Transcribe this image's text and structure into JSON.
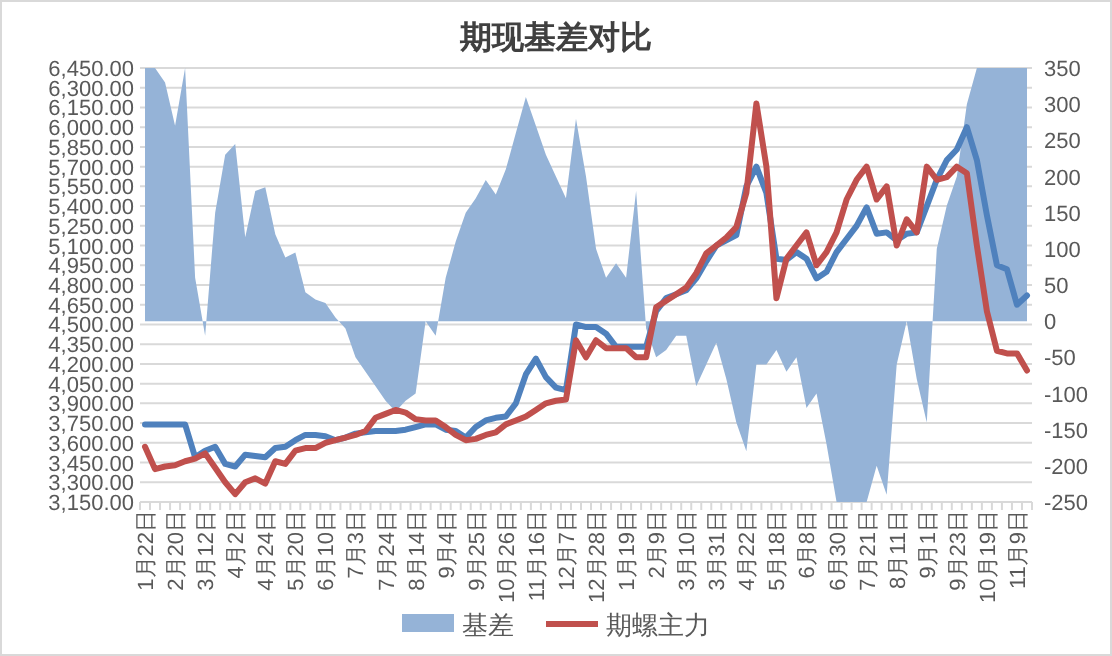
{
  "chart_data": {
    "type": "line",
    "title": "期现基差对比",
    "grid": "y",
    "legend": "bottom",
    "categories": [
      "1月22日",
      null,
      null,
      "2月20日",
      null,
      null,
      "3月12日",
      null,
      null,
      "4月2日",
      null,
      null,
      "4月24日",
      null,
      null,
      "5月20日",
      null,
      null,
      "6月10日",
      null,
      null,
      "7月3日",
      null,
      null,
      "7月24日",
      null,
      null,
      "8月14日",
      null,
      null,
      "9月4日",
      null,
      null,
      "9月25日",
      null,
      null,
      "10月26日",
      null,
      null,
      "11月16日",
      null,
      null,
      "12月7日",
      null,
      null,
      "12月28日",
      null,
      null,
      "1月19日",
      null,
      null,
      "2月9日",
      null,
      null,
      "3月10日",
      null,
      null,
      "3月31日",
      null,
      null,
      "4月22日",
      null,
      null,
      "5月18日",
      null,
      null,
      "6月8日",
      null,
      null,
      "6月30日",
      null,
      null,
      "7月21日",
      null,
      null,
      "8月11日",
      null,
      null,
      "9月1日",
      null,
      null,
      "9月23日",
      null,
      null,
      "10月19日",
      null,
      null,
      "11月9日",
      null
    ],
    "ylim": [
      3150,
      6450
    ],
    "yticks": [
      {
        "value": 3150,
        "label": "3,150.00"
      },
      {
        "value": 3300,
        "label": "3,300.00"
      },
      {
        "value": 3450,
        "label": "3,450.00"
      },
      {
        "value": 3600,
        "label": "3,600.00"
      },
      {
        "value": 3750,
        "label": "3,750.00"
      },
      {
        "value": 3900,
        "label": "3,900.00"
      },
      {
        "value": 4050,
        "label": "4,050.00"
      },
      {
        "value": 4200,
        "label": "4,200.00"
      },
      {
        "value": 4350,
        "label": "4,350.00"
      },
      {
        "value": 4500,
        "label": "4,500.00"
      },
      {
        "value": 4650,
        "label": "4,650.00"
      },
      {
        "value": 4800,
        "label": "4,800.00"
      },
      {
        "value": 4950,
        "label": "4,950.00"
      },
      {
        "value": 5100,
        "label": "5,100.00"
      },
      {
        "value": 5250,
        "label": "5,250.00"
      },
      {
        "value": 5400,
        "label": "5,400.00"
      },
      {
        "value": 5550,
        "label": "5,550.00"
      },
      {
        "value": 5700,
        "label": "5,700.00"
      },
      {
        "value": 5850,
        "label": "5,850.00"
      },
      {
        "value": 6000,
        "label": "6,000.00"
      },
      {
        "value": 6150,
        "label": "6,150.00"
      },
      {
        "value": 6300,
        "label": "6,300.00"
      },
      {
        "value": 6450,
        "label": "6,450.00"
      }
    ],
    "y2lim": [
      -250,
      350
    ],
    "y2ticks": [
      -250,
      -200,
      -150,
      -100,
      -50,
      0,
      50,
      100,
      150,
      200,
      250,
      300,
      350
    ],
    "series": [
      {
        "name": "基差",
        "type": "area",
        "axis": "y2",
        "color": "#95b3d7",
        "values": [
          350,
          350,
          330,
          270,
          350,
          60,
          -20,
          150,
          230,
          245,
          116,
          180,
          185,
          120,
          88,
          95,
          40,
          30,
          25,
          5,
          -10,
          -50,
          -70,
          -90,
          -110,
          -125,
          -110,
          -100,
          0,
          -20,
          60,
          110,
          150,
          170,
          195,
          175,
          210,
          260,
          310,
          270,
          230,
          200,
          170,
          280,
          200,
          100,
          60,
          80,
          60,
          180,
          -10,
          -50,
          -40,
          -20,
          -20,
          -90,
          -60,
          -30,
          -80,
          -140,
          -180,
          -60,
          -60,
          -40,
          -70,
          -50,
          -120,
          -100,
          -170,
          -250,
          -250,
          -250,
          -250,
          -200,
          -240,
          -60,
          0,
          -80,
          -140,
          100,
          160,
          200,
          300,
          350,
          350,
          350,
          350,
          350,
          350
        ]
      },
      {
        "color": "#4f81bd",
        "values": [
          3740,
          3740,
          3740,
          3740,
          3740,
          3490,
          3540,
          3570,
          3440,
          3420,
          3510,
          3500,
          3490,
          3560,
          3570,
          3620,
          3660,
          3660,
          3650,
          3620,
          3640,
          3670,
          3680,
          3690,
          3690,
          3690,
          3700,
          3720,
          3740,
          3740,
          3700,
          3690,
          3640,
          3720,
          3770,
          3790,
          3800,
          3900,
          4120,
          4240,
          4100,
          4020,
          4000,
          4500,
          4480,
          4480,
          4430,
          4330,
          4330,
          4330,
          4330,
          4600,
          4700,
          4730,
          4760,
          4850,
          4980,
          5100,
          5140,
          5180,
          5550,
          5700,
          5500,
          5000,
          4990,
          5050,
          5000,
          4850,
          4900,
          5050,
          5150,
          5250,
          5390,
          5190,
          5200,
          5140,
          5190,
          5200,
          5400,
          5600,
          5750,
          5830,
          6000,
          5750,
          5330,
          4950,
          4920,
          4650,
          4720
        ]
      },
      {
        "name": "期螺主力",
        "color": "#c0504d",
        "values": [
          3570,
          3400,
          3420,
          3430,
          3460,
          3480,
          3520,
          3410,
          3300,
          3210,
          3300,
          3330,
          3290,
          3460,
          3440,
          3540,
          3560,
          3560,
          3600,
          3620,
          3640,
          3660,
          3690,
          3790,
          3820,
          3850,
          3830,
          3780,
          3770,
          3770,
          3720,
          3660,
          3620,
          3630,
          3660,
          3680,
          3740,
          3770,
          3800,
          3850,
          3900,
          3920,
          3930,
          4380,
          4250,
          4380,
          4320,
          4320,
          4320,
          4250,
          4250,
          4630,
          4680,
          4730,
          4780,
          4890,
          5040,
          5100,
          5160,
          5240,
          5500,
          6180,
          5700,
          4700,
          5000,
          5100,
          5200,
          4950,
          5050,
          5200,
          5450,
          5600,
          5700,
          5450,
          5550,
          5100,
          5300,
          5200,
          5700,
          5600,
          5620,
          5700,
          5650,
          5100,
          4600,
          4300,
          4280,
          4280,
          4150
        ]
      }
    ]
  }
}
